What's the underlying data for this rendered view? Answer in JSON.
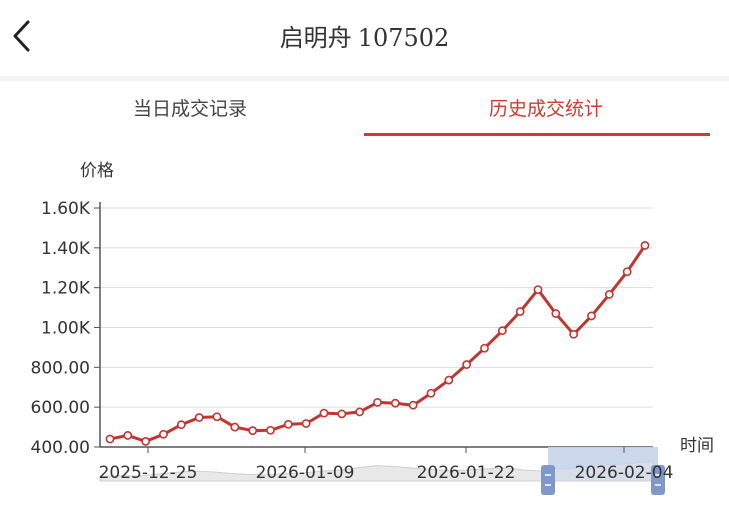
{
  "header": {
    "back_icon": "chevron-left-icon",
    "title_name": "启明舟",
    "title_code": "107502"
  },
  "tabs": [
    {
      "label": "当日成交记录",
      "active": false
    },
    {
      "label": "历史成交统计",
      "active": true
    }
  ],
  "colors": {
    "accent": "#d23a2f",
    "line": "#c23531",
    "grid": "#dcdcdc",
    "slider_fill": "#c9d6ea"
  },
  "chart_data": {
    "type": "line",
    "ylabel": "价格",
    "xlabel": "时间",
    "ylim": [
      400,
      1600
    ],
    "y_ticks": [
      "400.00",
      "600.00",
      "800.00",
      "1.00K",
      "1.20K",
      "1.40K",
      "1.60K"
    ],
    "x_ticks": [
      "2025-12-25",
      "2026-01-09",
      "2026-01-22",
      "2026-02-04"
    ],
    "grid": true,
    "legend": "none",
    "zoom_slider": true,
    "series": [
      {
        "values": [
          440,
          458,
          428,
          464,
          512,
          548,
          552,
          500,
          482,
          484,
          514,
          518,
          570,
          566,
          576,
          624,
          620,
          610,
          670,
          736,
          814,
          896,
          984,
          1080,
          1190,
          1070,
          966,
          1058,
          1166,
          1280,
          1412
        ]
      }
    ]
  }
}
